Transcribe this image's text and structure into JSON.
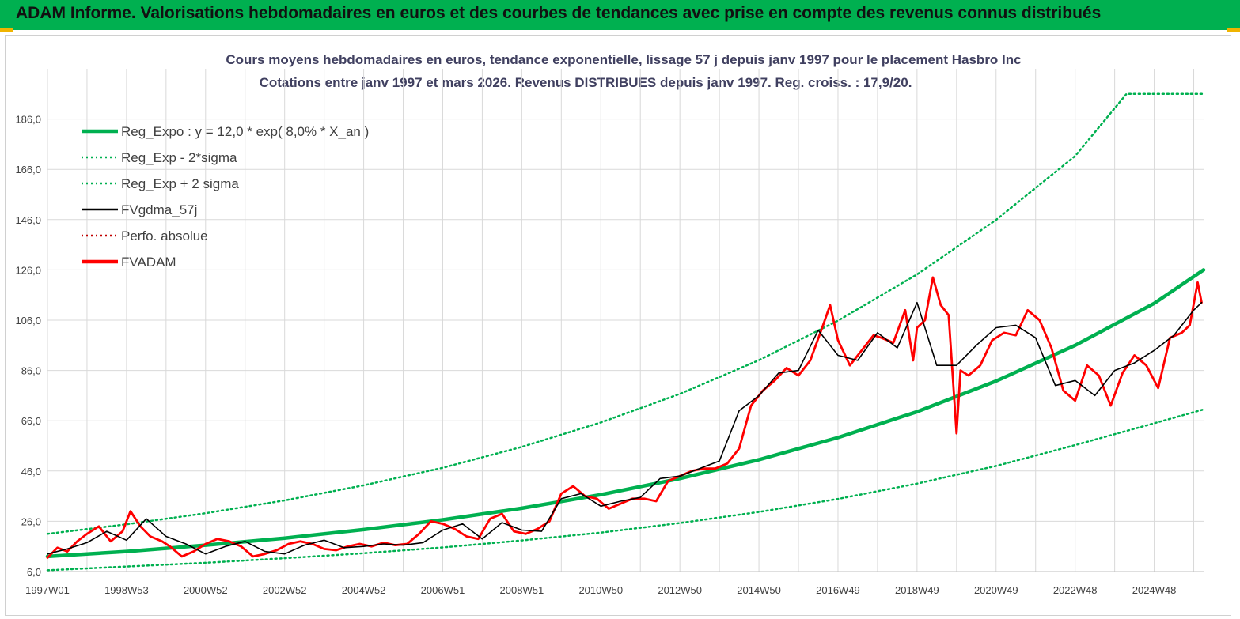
{
  "header": {
    "title": "ADAM Informe. Valorisations hebdomadaires en euros et des courbes de tendances avec prise en compte des revenus connus distribués"
  },
  "colors": {
    "banner": "#00b050",
    "regression": "#00b050",
    "band": "#00b050",
    "smooth": "#000000",
    "price": "#ff0000",
    "grid": "#d9d9d9"
  },
  "chart_data": {
    "type": "line",
    "title": "Cours moyens hebdomadaires en euros, tendance exponentielle, lissage 57 j depuis janv 1997 pour le placement Hasbro Inc",
    "subtitle": "Cotations entre janv 1997 et mars 2026. Revenus DISTRIBUES depuis janv 1997. Reg. croiss. : 17,9/20.",
    "xlabel": "",
    "ylabel": "",
    "ylim": [
      6.0,
      206.0
    ],
    "xlim": [
      1997.0,
      2026.25
    ],
    "y_ticks": [
      "6,0",
      "26,0",
      "46,0",
      "66,0",
      "86,0",
      "106,0",
      "126,0",
      "146,0",
      "166,0",
      "186,0"
    ],
    "y_tick_values": [
      6,
      26,
      46,
      66,
      86,
      106,
      126,
      146,
      166,
      186
    ],
    "x_ticks": [
      "1997W01",
      "1998W53",
      "2000W52",
      "2002W52",
      "2004W52",
      "2006W51",
      "2008W51",
      "2010W50",
      "2012W50",
      "2014W50",
      "2016W49",
      "2018W49",
      "2020W49",
      "2022W48",
      "2024W48"
    ],
    "x_tick_values": [
      1997.0,
      1999.0,
      2001.0,
      2003.0,
      2005.0,
      2007.0,
      2009.0,
      2011.0,
      2013.0,
      2015.0,
      2017.0,
      2019.0,
      2021.0,
      2023.0,
      2025.0
    ],
    "legend": [
      {
        "label": "Reg_Expo : y = 12,0 * exp( 8,0% *  X_an )",
        "color": "#00b050",
        "style": "solid-thick"
      },
      {
        "label": "Reg_Exp - 2*sigma",
        "color": "#00b050",
        "style": "dotted"
      },
      {
        "label": "Reg_Exp + 2 sigma",
        "color": "#00b050",
        "style": "dotted"
      },
      {
        "label": "FVgdma_57j",
        "color": "#000000",
        "style": "solid"
      },
      {
        "label": "Perfo. absolue",
        "color": "#c00000",
        "style": "dotted"
      },
      {
        "label": "FVADAM",
        "color": "#ff0000",
        "style": "solid-thick"
      }
    ],
    "series": [
      {
        "name": "Reg_Expo : y = 12,0 * exp( 8,0% *  X_an )",
        "x": [
          1997,
          1999,
          2001,
          2003,
          2005,
          2007,
          2009,
          2011,
          2013,
          2015,
          2017,
          2019,
          2021,
          2023,
          2025,
          2026.25
        ],
        "values": [
          12.0,
          14.0,
          16.5,
          19.3,
          22.7,
          26.6,
          31.2,
          36.6,
          43.0,
          50.5,
          59.3,
          69.6,
          81.8,
          96.0,
          112.7,
          126.0
        ]
      },
      {
        "name": "Reg_Exp - 2*sigma",
        "x": [
          1997,
          1999,
          2001,
          2003,
          2005,
          2007,
          2009,
          2011,
          2013,
          2015,
          2017,
          2019,
          2021,
          2023,
          2025,
          2026.25
        ],
        "values": [
          6.5,
          8.0,
          9.5,
          11.3,
          13.3,
          15.6,
          18.4,
          21.5,
          25.3,
          29.7,
          34.9,
          41.0,
          48.0,
          56.3,
          65.0,
          70.5
        ]
      },
      {
        "name": "Reg_Exp + 2 sigma",
        "x": [
          1997,
          1999,
          2001,
          2003,
          2005,
          2007,
          2009,
          2011,
          2013,
          2015,
          2017,
          2019,
          2021,
          2023,
          2024.3,
          2026.25
        ],
        "values": [
          21.0,
          24.8,
          29.2,
          34.3,
          40.3,
          47.3,
          55.6,
          65.3,
          76.7,
          90.1,
          105.8,
          124.2,
          145.9,
          171.3,
          196.0,
          196.0
        ]
      },
      {
        "name": "FVgdma_57j",
        "x": [
          1997.0,
          1997.5,
          1998.0,
          1998.5,
          1999.0,
          1999.5,
          2000.0,
          2000.5,
          2001.0,
          2001.5,
          2002.0,
          2002.5,
          2003.0,
          2003.5,
          2004.0,
          2004.5,
          2005.0,
          2005.5,
          2006.0,
          2006.5,
          2007.0,
          2007.5,
          2008.0,
          2008.5,
          2009.0,
          2009.5,
          2010.0,
          2010.5,
          2011.0,
          2011.5,
          2012.0,
          2012.5,
          2013.0,
          2013.5,
          2014.0,
          2014.5,
          2015.0,
          2015.5,
          2016.0,
          2016.5,
          2017.0,
          2017.5,
          2018.0,
          2018.5,
          2019.0,
          2019.5,
          2020.0,
          2020.5,
          2021.0,
          2021.5,
          2022.0,
          2022.5,
          2023.0,
          2023.5,
          2024.0,
          2024.5,
          2025.0,
          2025.5,
          2026.0,
          2026.2
        ],
        "values": [
          13.0,
          15.0,
          17.5,
          22.0,
          18.5,
          27.0,
          20.0,
          17.0,
          13.0,
          16.0,
          18.0,
          14.0,
          13.0,
          16.5,
          18.5,
          15.5,
          16.0,
          17.0,
          16.5,
          17.5,
          22.5,
          25.0,
          19.0,
          25.5,
          22.5,
          22.0,
          35.0,
          37.0,
          32.0,
          34.0,
          35.5,
          43.0,
          44.0,
          47.0,
          50.0,
          70.0,
          76.0,
          85.0,
          86.0,
          102.0,
          92.0,
          90.0,
          101.0,
          95.0,
          113.0,
          88.0,
          88.0,
          96.0,
          103.0,
          104.0,
          99.0,
          80.0,
          82.0,
          76.0,
          86.0,
          89.0,
          94.0,
          100.0,
          110.0,
          113.0
        ]
      },
      {
        "name": "FVADAM",
        "x": [
          1997.0,
          1997.25,
          1997.5,
          1997.75,
          1998.0,
          1998.3,
          1998.6,
          1998.9,
          1999.1,
          1999.35,
          1999.6,
          1999.9,
          2000.1,
          2000.4,
          2000.7,
          2001.0,
          2001.3,
          2001.6,
          2001.9,
          2002.2,
          2002.5,
          2002.8,
          2003.1,
          2003.4,
          2003.7,
          2004.0,
          2004.3,
          2004.6,
          2004.9,
          2005.2,
          2005.5,
          2005.8,
          2006.1,
          2006.4,
          2006.7,
          2007.0,
          2007.3,
          2007.6,
          2007.9,
          2008.2,
          2008.5,
          2008.8,
          2009.1,
          2009.4,
          2009.7,
          2010.0,
          2010.3,
          2010.6,
          2010.9,
          2011.2,
          2011.5,
          2011.8,
          2012.1,
          2012.4,
          2012.7,
          2013.0,
          2013.3,
          2013.6,
          2013.9,
          2014.2,
          2014.5,
          2014.8,
          2015.1,
          2015.4,
          2015.7,
          2016.0,
          2016.3,
          2016.6,
          2016.8,
          2017.0,
          2017.3,
          2017.6,
          2017.9,
          2018.1,
          2018.4,
          2018.7,
          2018.9,
          2019.0,
          2019.2,
          2019.4,
          2019.6,
          2019.8,
          2020.0,
          2020.1,
          2020.3,
          2020.6,
          2020.9,
          2021.2,
          2021.5,
          2021.8,
          2022.1,
          2022.4,
          2022.7,
          2023.0,
          2023.3,
          2023.6,
          2023.9,
          2024.2,
          2024.5,
          2024.8,
          2025.1,
          2025.4,
          2025.7,
          2025.9,
          2026.1,
          2026.2
        ],
        "values": [
          11.5,
          15.5,
          14.0,
          18.0,
          21.0,
          24.0,
          18.0,
          22.0,
          30.0,
          24.0,
          20.0,
          18.0,
          16.0,
          12.0,
          14.0,
          17.0,
          19.0,
          18.0,
          16.0,
          12.0,
          13.0,
          14.5,
          17.0,
          18.0,
          17.0,
          15.0,
          14.5,
          16.0,
          17.0,
          16.0,
          17.5,
          16.5,
          17.0,
          21.0,
          26.0,
          25.0,
          23.0,
          20.0,
          19.0,
          27.0,
          29.0,
          22.0,
          21.0,
          23.0,
          26.0,
          37.0,
          40.0,
          36.0,
          35.0,
          31.0,
          33.0,
          35.0,
          35.0,
          34.0,
          42.0,
          44.0,
          46.0,
          47.0,
          47.0,
          49.0,
          55.0,
          72.0,
          78.0,
          82.0,
          87.0,
          84.0,
          90.0,
          103.0,
          112.0,
          98.0,
          88.0,
          94.0,
          100.0,
          99.0,
          97.0,
          110.0,
          90.0,
          103.0,
          106.0,
          123.0,
          112.0,
          108.0,
          61.0,
          86.0,
          84.0,
          88.0,
          98.0,
          101.0,
          100.0,
          110.0,
          106.0,
          95.0,
          78.0,
          74.0,
          88.0,
          84.0,
          72.0,
          85.0,
          92.0,
          88.0,
          79.0,
          99.0,
          101.0,
          104.0,
          121.0,
          113.0
        ]
      }
    ]
  }
}
